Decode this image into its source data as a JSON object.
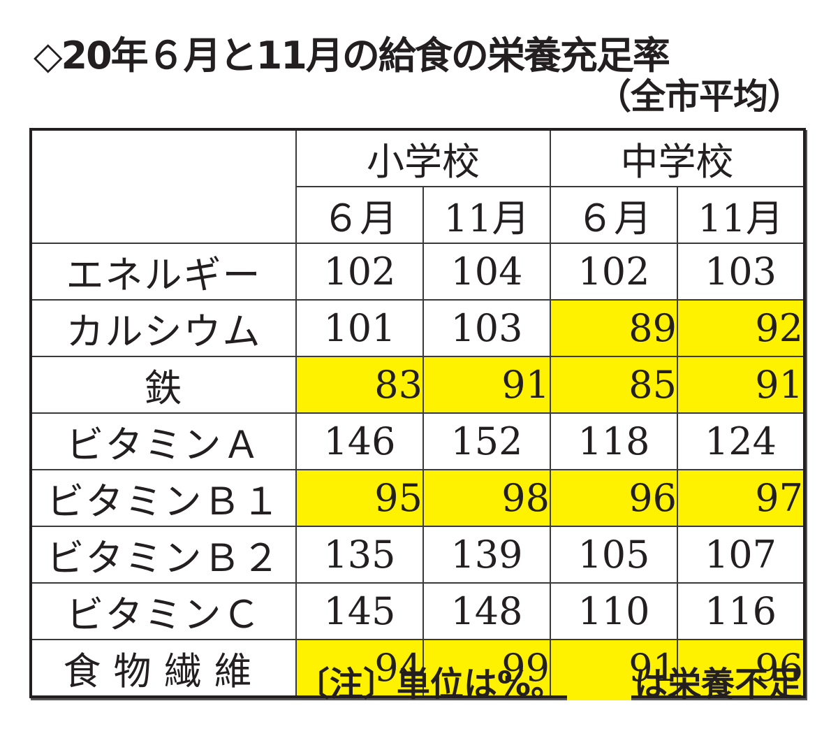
{
  "title": "◇20年６月と11月の給食の栄養充足率",
  "subtitle": "（全市平均）",
  "table": {
    "groups": [
      "小学校",
      "中学校"
    ],
    "months": [
      "６月",
      "11月",
      "６月",
      "11月"
    ],
    "rows": [
      {
        "label": "エネルギー",
        "values": [
          "102",
          "104",
          "102",
          "103"
        ],
        "highlight": [
          false,
          false,
          false,
          false
        ]
      },
      {
        "label": "カルシウム",
        "values": [
          "101",
          "103",
          "89",
          "92"
        ],
        "highlight": [
          false,
          false,
          true,
          true
        ]
      },
      {
        "label": "鉄",
        "values": [
          "83",
          "91",
          "85",
          "91"
        ],
        "highlight": [
          true,
          true,
          true,
          true
        ]
      },
      {
        "label": "ビタミンＡ",
        "values": [
          "146",
          "152",
          "118",
          "124"
        ],
        "highlight": [
          false,
          false,
          false,
          false
        ]
      },
      {
        "label": "ビタミンＢ１",
        "values": [
          "95",
          "98",
          "96",
          "97"
        ],
        "highlight": [
          true,
          true,
          true,
          true
        ]
      },
      {
        "label": "ビタミンＢ２",
        "values": [
          "135",
          "139",
          "105",
          "107"
        ],
        "highlight": [
          false,
          false,
          false,
          false
        ]
      },
      {
        "label": "ビタミンＣ",
        "values": [
          "145",
          "148",
          "110",
          "116"
        ],
        "highlight": [
          false,
          false,
          false,
          false
        ]
      },
      {
        "label": "食物繊維",
        "values": [
          "94",
          "99",
          "91",
          "96"
        ],
        "highlight": [
          true,
          true,
          true,
          true
        ]
      }
    ]
  },
  "note": {
    "prefix": "〔注〕単位は%。",
    "suffix": "は栄養不足"
  },
  "colors": {
    "highlight": "#fff200",
    "text": "#231f20",
    "border": "#231f20"
  },
  "chart_data": {
    "type": "table",
    "title": "◇20年６月と11月の給食の栄養充足率（全市平均）",
    "columns": [
      "小学校 ６月",
      "小学校 11月",
      "中学校 ６月",
      "中学校 11月"
    ],
    "column_groups": [
      {
        "name": "小学校",
        "months": [
          "６月",
          "11月"
        ]
      },
      {
        "name": "中学校",
        "months": [
          "６月",
          "11月"
        ]
      }
    ],
    "row_labels": [
      "エネルギー",
      "カルシウム",
      "鉄",
      "ビタミンＡ",
      "ビタミンＢ１",
      "ビタミンＢ２",
      "ビタミンＣ",
      "食物繊維"
    ],
    "values": [
      [
        102,
        104,
        102,
        103
      ],
      [
        101,
        103,
        89,
        92
      ],
      [
        83,
        91,
        85,
        91
      ],
      [
        146,
        152,
        118,
        124
      ],
      [
        95,
        98,
        96,
        97
      ],
      [
        135,
        139,
        105,
        107
      ],
      [
        145,
        148,
        110,
        116
      ],
      [
        94,
        99,
        91,
        96
      ]
    ],
    "unit": "%",
    "highlighted_meaning": "栄養不足",
    "highlight_color": "#fff200",
    "highlighted_cells": [
      [
        1,
        2
      ],
      [
        1,
        3
      ],
      [
        2,
        0
      ],
      [
        2,
        1
      ],
      [
        2,
        2
      ],
      [
        2,
        3
      ],
      [
        4,
        0
      ],
      [
        4,
        1
      ],
      [
        4,
        2
      ],
      [
        4,
        3
      ],
      [
        7,
        0
      ],
      [
        7,
        1
      ],
      [
        7,
        2
      ],
      [
        7,
        3
      ]
    ],
    "note": "〔注〕単位は%。（黄色）は栄養不足"
  }
}
